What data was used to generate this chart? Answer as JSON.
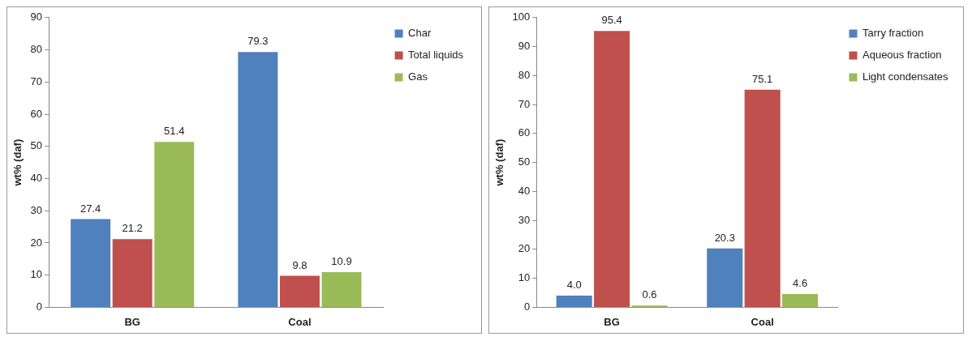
{
  "chart_data": [
    {
      "type": "bar",
      "ylabel": "wt% (daf)",
      "categories": [
        "BG",
        "Coal"
      ],
      "ylim": [
        0,
        90
      ],
      "yticks": [
        0,
        10,
        20,
        30,
        40,
        50,
        60,
        70,
        80,
        90
      ],
      "grid": false,
      "legend": "top right",
      "series": [
        {
          "name": "Char",
          "color": "#4f81bd",
          "values": [
            27.4,
            79.3
          ],
          "value_labels": [
            "27.4",
            "79.3"
          ]
        },
        {
          "name": "Total liquids",
          "color": "#c0504d",
          "values": [
            21.2,
            9.8
          ],
          "value_labels": [
            "21.2",
            "9.8"
          ]
        },
        {
          "name": "Gas",
          "color": "#9bbb59",
          "values": [
            51.4,
            10.9
          ],
          "value_labels": [
            "51.4",
            "10.9"
          ]
        }
      ]
    },
    {
      "type": "bar",
      "ylabel": "wt% (daf)",
      "categories": [
        "BG",
        "Coal"
      ],
      "ylim": [
        0,
        100
      ],
      "yticks": [
        0,
        10,
        20,
        30,
        40,
        50,
        60,
        70,
        80,
        90,
        100
      ],
      "grid": false,
      "legend": "top right",
      "series": [
        {
          "name": "Tarry fraction",
          "color": "#4f81bd",
          "values": [
            4.0,
            20.3
          ],
          "value_labels": [
            "4.0",
            "20.3"
          ]
        },
        {
          "name": "Aqueous fraction",
          "color": "#c0504d",
          "values": [
            95.4,
            75.1
          ],
          "value_labels": [
            "95.4",
            "75.1"
          ]
        },
        {
          "name": "Light condensates",
          "color": "#9bbb59",
          "values": [
            0.6,
            4.6
          ],
          "value_labels": [
            "0.6",
            "4.6"
          ]
        }
      ]
    }
  ]
}
